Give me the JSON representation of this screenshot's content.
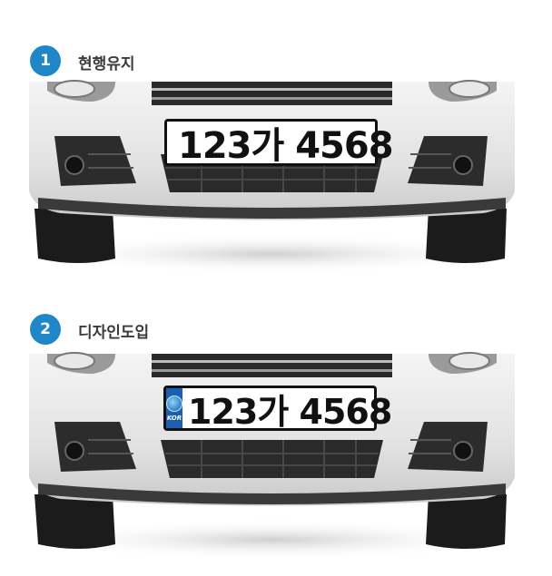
{
  "options": [
    {
      "number": "1",
      "title": "현행유지",
      "plate_text": "123가 4568",
      "has_kor_badge": false
    },
    {
      "number": "2",
      "title": "디자인도입",
      "plate_text": "123가 4568",
      "has_kor_badge": true,
      "badge_text": "KOR"
    }
  ]
}
